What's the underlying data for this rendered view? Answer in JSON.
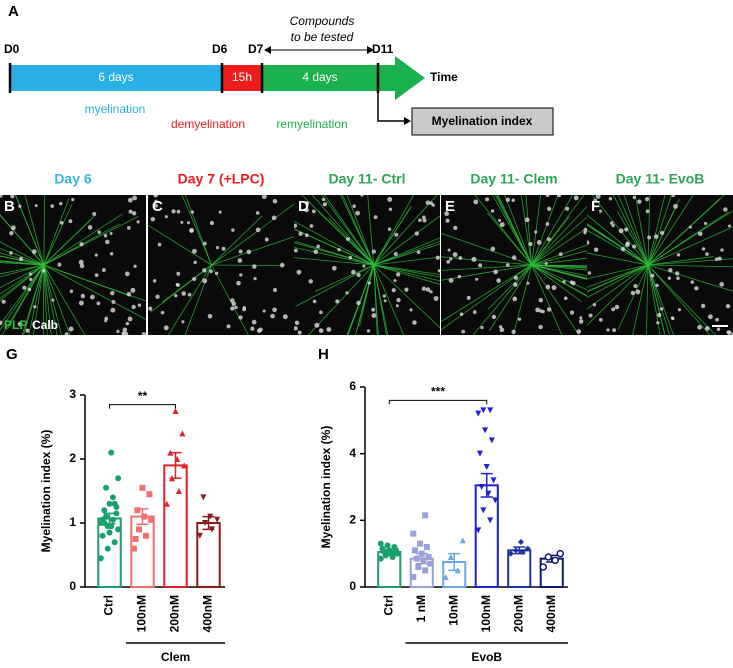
{
  "panel_labels": [
    "A",
    "B",
    "C",
    "D",
    "E",
    "F",
    "G",
    "H"
  ],
  "timeline": {
    "days": [
      "D0",
      "D6",
      "D7",
      "D11"
    ],
    "segments": [
      "6 days",
      "15h",
      "4 days"
    ],
    "phases": [
      "myelination",
      "demyelination",
      "remyelination"
    ],
    "compounds": [
      "Compounds",
      "to be tested"
    ],
    "axis": "Time",
    "output": "Myelination index"
  },
  "images": {
    "titles": [
      "Day 6",
      "Day 7 (+LPC)",
      "Day 11- Ctrl",
      "Day 11- Clem",
      "Day 11- EvoB"
    ],
    "stain": [
      "PLP",
      "Calb"
    ]
  },
  "chart_data": [
    {
      "type": "bar",
      "ylabel": "Myelination index (%)",
      "categories": [
        "Ctrl",
        "100nM",
        "200nM",
        "400nM"
      ],
      "values": [
        1.07,
        1.1,
        1.9,
        1.0
      ],
      "errors": [
        0.08,
        0.12,
        0.2,
        0.1
      ],
      "colors": [
        "#1a9e6e",
        "#f07070",
        "#e0202a",
        "#8b1a1a"
      ],
      "markers": [
        "circle",
        "square",
        "triangle",
        "triangle-down"
      ],
      "points": [
        [
          1.0,
          1.05,
          1.1,
          0.9,
          0.95,
          1.2,
          1.25,
          1.3,
          0.8,
          0.7,
          0.6,
          0.45,
          1.4,
          1.55,
          1.7,
          2.1,
          1.0,
          1.15,
          0.85,
          1.05,
          1.3,
          0.95
        ],
        [
          0.6,
          0.8,
          0.9,
          1.05,
          1.1,
          1.2,
          1.45,
          1.55,
          0.75
        ],
        [
          1.3,
          1.5,
          1.7,
          1.9,
          2.0,
          2.1,
          2.4,
          2.75
        ],
        [
          0.8,
          0.9,
          1.0,
          1.05,
          1.1,
          1.4
        ]
      ],
      "ylim": [
        0,
        3
      ],
      "yticks": [
        0,
        1,
        2,
        3
      ],
      "annotation": "**",
      "group_label": "Clem"
    },
    {
      "type": "bar",
      "ylabel": "Myelination index (%)",
      "categories": [
        "Ctrl",
        "1 nM",
        "10nM",
        "100nM",
        "200nM",
        "400nM"
      ],
      "values": [
        1.05,
        0.85,
        0.75,
        3.05,
        1.1,
        0.85
      ],
      "errors": [
        0.05,
        0.15,
        0.25,
        0.35,
        0.1,
        0.1
      ],
      "colors": [
        "#1a9e6e",
        "#9aa0d8",
        "#6aa6e0",
        "#2020d0",
        "#2030a0",
        "#101a70"
      ],
      "markers": [
        "circle",
        "square",
        "triangle",
        "triangle-down",
        "diamond",
        "circle"
      ],
      "points": [
        [
          0.85,
          0.9,
          0.95,
          1.0,
          1.0,
          1.05,
          1.1,
          1.1,
          1.15,
          1.2,
          1.25,
          1.3,
          0.95,
          1.05
        ],
        [
          0.3,
          0.5,
          0.6,
          0.7,
          0.8,
          0.85,
          0.9,
          1.0,
          1.1,
          1.2,
          1.3,
          1.6,
          2.15
        ],
        [
          0.3,
          0.5,
          0.9,
          1.4
        ],
        [
          1.7,
          2.0,
          2.3,
          2.6,
          2.8,
          3.0,
          3.2,
          3.6,
          4.0,
          4.4,
          4.7,
          5.2,
          5.3,
          5.3
        ],
        [
          1.0,
          1.05,
          1.1,
          1.15,
          1.35
        ],
        [
          0.6,
          0.8,
          0.9,
          1.0
        ]
      ],
      "ylim": [
        0,
        6
      ],
      "yticks": [
        0,
        2,
        4,
        6
      ],
      "annotation": "***",
      "group_label": "EvoB"
    }
  ]
}
